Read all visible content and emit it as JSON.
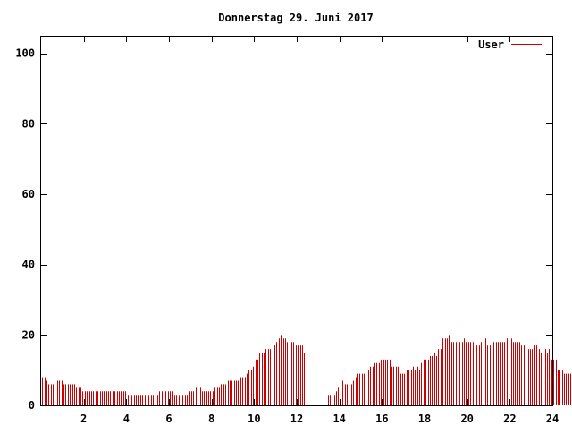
{
  "chart_data": {
    "type": "bar",
    "title": "Donnerstag 29. Juni 2017",
    "xlabel": "",
    "ylabel": "",
    "xlim": [
      0,
      24
    ],
    "ylim": [
      0,
      105
    ],
    "x_ticks": [
      2,
      4,
      6,
      8,
      10,
      12,
      14,
      16,
      18,
      20,
      22,
      24
    ],
    "y_ticks": [
      0,
      20,
      40,
      60,
      80,
      100
    ],
    "grid": false,
    "legend_position": "top-right",
    "series": [
      {
        "name": "User",
        "color": "#cc0000",
        "sample_interval_hours": 0.1,
        "x_start": 0.05,
        "values": [
          8,
          8,
          7,
          6,
          6,
          6,
          7,
          7,
          7,
          7,
          6,
          6,
          6,
          6,
          6,
          6,
          5,
          5,
          5,
          4,
          4,
          4,
          4,
          4,
          4,
          4,
          4,
          4,
          4,
          4,
          4,
          4,
          4,
          4,
          4,
          4,
          4,
          4,
          4,
          4,
          3,
          3,
          3,
          3,
          3,
          3,
          3,
          3,
          3,
          3,
          3,
          3,
          3,
          3,
          3,
          4,
          4,
          4,
          4,
          4,
          4,
          4,
          3,
          3,
          3,
          3,
          3,
          3,
          3,
          4,
          4,
          4,
          5,
          5,
          5,
          4,
          4,
          4,
          4,
          4,
          4,
          5,
          5,
          5,
          6,
          6,
          6,
          7,
          7,
          7,
          7,
          7,
          7,
          8,
          8,
          8,
          9,
          10,
          10,
          11,
          13,
          13,
          15,
          15,
          15,
          16,
          16,
          16,
          16,
          17,
          18,
          19,
          20,
          19,
          19,
          18,
          18,
          18,
          18,
          17,
          17,
          17,
          17,
          15,
          null,
          null,
          null,
          null,
          null,
          null,
          null,
          null,
          null,
          null,
          3,
          3,
          5,
          3,
          4,
          5,
          6,
          7,
          6,
          6,
          6,
          6,
          7,
          8,
          9,
          9,
          9,
          9,
          9,
          10,
          11,
          11,
          12,
          12,
          12,
          13,
          13,
          13,
          13,
          13,
          11,
          11,
          11,
          11,
          9,
          9,
          9,
          10,
          10,
          10,
          11,
          10,
          11,
          10,
          12,
          13,
          13,
          13,
          14,
          14,
          15,
          14,
          16,
          16,
          19,
          19,
          19,
          20,
          18,
          18,
          18,
          19,
          18,
          18,
          19,
          18,
          18,
          18,
          18,
          18,
          17,
          17,
          18,
          18,
          19,
          17,
          17,
          18,
          18,
          18,
          18,
          18,
          18,
          18,
          19,
          19,
          19,
          18,
          18,
          18,
          18,
          17,
          17,
          18,
          16,
          16,
          16,
          17,
          17,
          16,
          15,
          15,
          16,
          15,
          16,
          13,
          13,
          13,
          10,
          10,
          10,
          9,
          9,
          9,
          9,
          9
        ]
      }
    ]
  }
}
